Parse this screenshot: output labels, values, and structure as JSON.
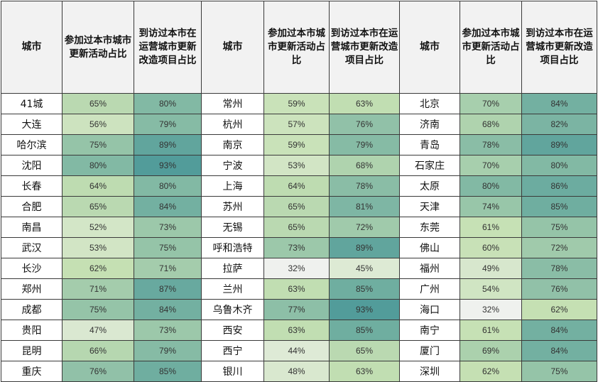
{
  "chart_data": {
    "type": "table",
    "columns": [
      "城市",
      "参加过本市城市更新活动占比",
      "到访过本市在运营城市更新改造项目占比"
    ],
    "column_groups": 3,
    "groups": [
      {
        "rows": [
          {
            "city": "41城",
            "activity": "65%",
            "visit": "80%"
          },
          {
            "city": "大连",
            "activity": "56%",
            "visit": "79%"
          },
          {
            "city": "哈尔滨",
            "activity": "75%",
            "visit": "89%"
          },
          {
            "city": "沈阳",
            "activity": "80%",
            "visit": "93%"
          },
          {
            "city": "长春",
            "activity": "64%",
            "visit": "80%"
          },
          {
            "city": "合肥",
            "activity": "65%",
            "visit": "84%"
          },
          {
            "city": "南昌",
            "activity": "52%",
            "visit": "73%"
          },
          {
            "city": "武汉",
            "activity": "53%",
            "visit": "75%"
          },
          {
            "city": "长沙",
            "activity": "62%",
            "visit": "71%"
          },
          {
            "city": "郑州",
            "activity": "71%",
            "visit": "87%"
          },
          {
            "city": "成都",
            "activity": "75%",
            "visit": "84%"
          },
          {
            "city": "贵阳",
            "activity": "47%",
            "visit": "73%"
          },
          {
            "city": "昆明",
            "activity": "66%",
            "visit": "79%"
          },
          {
            "city": "重庆",
            "activity": "76%",
            "visit": "85%"
          }
        ]
      },
      {
        "rows": [
          {
            "city": "常州",
            "activity": "59%",
            "visit": "63%"
          },
          {
            "city": "杭州",
            "activity": "57%",
            "visit": "76%"
          },
          {
            "city": "南京",
            "activity": "59%",
            "visit": "79%"
          },
          {
            "city": "宁波",
            "activity": "53%",
            "visit": "68%"
          },
          {
            "city": "上海",
            "activity": "64%",
            "visit": "78%"
          },
          {
            "city": "苏州",
            "activity": "65%",
            "visit": "81%"
          },
          {
            "city": "无锡",
            "activity": "65%",
            "visit": "72%"
          },
          {
            "city": "呼和浩特",
            "activity": "73%",
            "visit": "89%"
          },
          {
            "city": "拉萨",
            "activity": "32%",
            "visit": "45%"
          },
          {
            "city": "兰州",
            "activity": "63%",
            "visit": "85%"
          },
          {
            "city": "乌鲁木齐",
            "activity": "77%",
            "visit": "93%"
          },
          {
            "city": "西安",
            "activity": "63%",
            "visit": "85%"
          },
          {
            "city": "西宁",
            "activity": "44%",
            "visit": "65%"
          },
          {
            "city": "银川",
            "activity": "48%",
            "visit": "63%"
          }
        ]
      },
      {
        "rows": [
          {
            "city": "北京",
            "activity": "70%",
            "visit": "84%"
          },
          {
            "city": "济南",
            "activity": "68%",
            "visit": "82%"
          },
          {
            "city": "青岛",
            "activity": "78%",
            "visit": "89%"
          },
          {
            "city": "石家庄",
            "activity": "70%",
            "visit": "80%"
          },
          {
            "city": "太原",
            "activity": "80%",
            "visit": "86%"
          },
          {
            "city": "天津",
            "activity": "74%",
            "visit": "85%"
          },
          {
            "city": "东莞",
            "activity": "61%",
            "visit": "75%"
          },
          {
            "city": "佛山",
            "activity": "60%",
            "visit": "72%"
          },
          {
            "city": "福州",
            "activity": "49%",
            "visit": "78%"
          },
          {
            "city": "广州",
            "activity": "54%",
            "visit": "76%"
          },
          {
            "city": "海口",
            "activity": "32%",
            "visit": "62%"
          },
          {
            "city": "南宁",
            "activity": "61%",
            "visit": "84%"
          },
          {
            "city": "厦门",
            "activity": "69%",
            "visit": "84%"
          },
          {
            "city": "深圳",
            "activity": "62%",
            "visit": "75%"
          }
        ]
      }
    ],
    "color_scale": {
      "low": "#f2f2f2",
      "mid": "#c5e0b3",
      "high": "#4e9a99"
    }
  }
}
